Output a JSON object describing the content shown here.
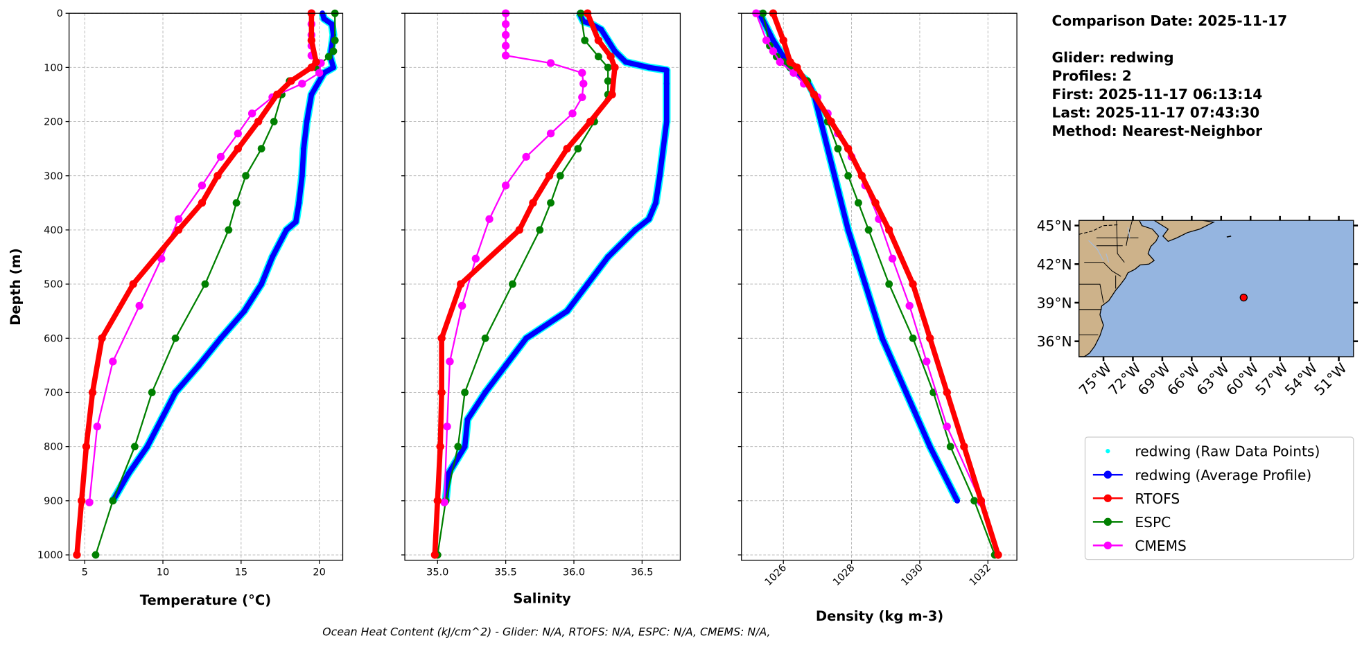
{
  "info": {
    "comparison_date": "Comparison Date: 2025-11-17",
    "glider": "Glider: redwing",
    "profiles": "Profiles: 2",
    "first": "First: 2025-11-17 06:13:14",
    "last": "Last: 2025-11-17 07:43:30",
    "method": "Method: Nearest-Neighbor"
  },
  "footer": "Ocean Heat Content (kJ/cm^2) - Glider: N/A,  RTOFS: N/A,  ESPC: N/A,  CMEMS: N/A,",
  "colors": {
    "raw": "#00ffff",
    "glider": "#0000ff",
    "rtofs": "#ff0000",
    "espc": "#008000",
    "cmems": "#ff00ff",
    "land": "#cdb28a",
    "ocean": "#95b5e0"
  },
  "legend": [
    {
      "label": "redwing (Raw Data Points)",
      "key": "raw"
    },
    {
      "label": "redwing (Average Profile)",
      "key": "glider"
    },
    {
      "label": "RTOFS",
      "key": "rtofs"
    },
    {
      "label": "ESPC",
      "key": "espc"
    },
    {
      "label": "CMEMS",
      "key": "cmems"
    }
  ],
  "map": {
    "lat_ticks": [
      "45°N",
      "42°N",
      "39°N",
      "36°N"
    ],
    "lat_values": [
      45,
      42,
      39,
      36
    ],
    "lon_ticks": [
      "75°W",
      "72°W",
      "69°W",
      "66°W",
      "63°W",
      "60°W",
      "57°W",
      "54°W",
      "51°W"
    ],
    "lon_values": [
      -75,
      -72,
      -69,
      -66,
      -63,
      -60,
      -57,
      -54,
      -51
    ],
    "lon_range": [
      -77.5,
      -49.5
    ],
    "lat_range": [
      34.8,
      45.4
    ],
    "glider_position": {
      "lon": -60.7,
      "lat": 39.4
    }
  },
  "chart_data": [
    {
      "type": "line",
      "id": "temperature",
      "xlabel": "Temperature (°C)",
      "ylabel": "Depth (m)",
      "xlim": [
        4.0,
        21.5
      ],
      "ylim": [
        1010,
        0
      ],
      "xticks": [
        5,
        10,
        15,
        20
      ],
      "xtick_labels": [
        "5",
        "10",
        "15",
        "20"
      ],
      "yticks": [
        0,
        100,
        200,
        300,
        400,
        500,
        600,
        700,
        800,
        900,
        1000
      ],
      "ytick_labels": [
        "0",
        "100",
        "200",
        "300",
        "400",
        "500",
        "600",
        "700",
        "800",
        "900",
        "1000"
      ],
      "grid": true,
      "series": [
        {
          "name": "glider",
          "depth": [
            0,
            10,
            20,
            40,
            80,
            100,
            110,
            150,
            200,
            250,
            300,
            350,
            385,
            400,
            450,
            500,
            550,
            600,
            650,
            700,
            750,
            800,
            850,
            900
          ],
          "values": [
            20.2,
            20.3,
            20.8,
            20.9,
            20.7,
            20.9,
            20.3,
            19.5,
            19.2,
            19.0,
            18.9,
            18.7,
            18.5,
            17.9,
            17.0,
            16.3,
            15.2,
            13.7,
            12.3,
            10.8,
            9.9,
            9.0,
            7.8,
            6.8
          ]
        },
        {
          "name": "rtofs",
          "depth": [
            0,
            50,
            90,
            100,
            125,
            150,
            200,
            250,
            300,
            350,
            400,
            500,
            600,
            700,
            800,
            900,
            1000
          ],
          "values": [
            19.5,
            19.5,
            19.8,
            19.5,
            18.2,
            17.3,
            16.1,
            14.8,
            13.5,
            12.5,
            11.0,
            8.1,
            6.1,
            5.5,
            5.1,
            4.8,
            4.5
          ]
        },
        {
          "name": "espc",
          "depth": [
            0,
            50,
            70,
            80,
            100,
            125,
            150,
            200,
            250,
            300,
            350,
            400,
            500,
            600,
            700,
            800,
            900,
            1000
          ],
          "values": [
            21.0,
            21.0,
            20.9,
            20.6,
            19.8,
            18.1,
            17.6,
            17.1,
            16.3,
            15.3,
            14.7,
            14.2,
            12.7,
            10.8,
            9.3,
            8.2,
            6.8,
            5.7
          ]
        },
        {
          "name": "cmems",
          "depth": [
            0,
            20,
            40,
            60,
            78,
            92,
            110,
            130,
            155,
            185,
            222,
            265,
            318,
            380,
            453,
            540,
            643,
            763,
            903
          ],
          "values": [
            19.5,
            19.5,
            19.5,
            19.5,
            19.5,
            20.1,
            20.0,
            18.9,
            17.0,
            15.7,
            14.8,
            13.7,
            12.5,
            11.0,
            9.9,
            8.5,
            6.8,
            5.8,
            5.3
          ]
        }
      ]
    },
    {
      "type": "line",
      "id": "salinity",
      "xlabel": "Salinity",
      "xlim": [
        34.76,
        36.78
      ],
      "ylim": [
        1010,
        0
      ],
      "xticks": [
        35.0,
        35.5,
        36.0,
        36.5
      ],
      "xtick_labels": [
        "35.0",
        "35.5",
        "36.0",
        "36.5"
      ],
      "yticks": [
        0,
        100,
        200,
        300,
        400,
        500,
        600,
        700,
        800,
        900,
        1000
      ],
      "grid": true,
      "series": [
        {
          "name": "glider",
          "depth": [
            0,
            15,
            20,
            30,
            50,
            70,
            90,
            100,
            105,
            130,
            200,
            300,
            350,
            380,
            400,
            450,
            500,
            550,
            600,
            650,
            700,
            750,
            800,
            850,
            900
          ],
          "values": [
            36.04,
            36.07,
            36.13,
            36.2,
            36.25,
            36.3,
            36.38,
            36.55,
            36.68,
            36.68,
            36.68,
            36.63,
            36.6,
            36.55,
            36.45,
            36.25,
            36.1,
            35.95,
            35.65,
            35.5,
            35.35,
            35.22,
            35.2,
            35.08,
            35.06
          ]
        },
        {
          "name": "rtofs",
          "depth": [
            0,
            50,
            80,
            100,
            150,
            200,
            250,
            300,
            350,
            400,
            500,
            600,
            700,
            800,
            900,
            1000
          ],
          "values": [
            36.1,
            36.18,
            36.27,
            36.3,
            36.28,
            36.12,
            35.95,
            35.82,
            35.7,
            35.6,
            35.17,
            35.03,
            35.03,
            35.02,
            35.0,
            34.98
          ]
        },
        {
          "name": "espc",
          "depth": [
            0,
            50,
            80,
            100,
            125,
            150,
            200,
            250,
            300,
            350,
            400,
            500,
            600,
            700,
            800,
            900,
            1000
          ],
          "values": [
            36.05,
            36.08,
            36.18,
            36.25,
            36.25,
            36.25,
            36.15,
            36.03,
            35.9,
            35.83,
            35.75,
            35.55,
            35.35,
            35.2,
            35.15,
            35.06,
            35.0
          ]
        },
        {
          "name": "cmems",
          "depth": [
            0,
            20,
            40,
            60,
            78,
            92,
            110,
            130,
            155,
            185,
            222,
            265,
            318,
            380,
            453,
            540,
            643,
            763,
            903
          ],
          "values": [
            35.5,
            35.5,
            35.5,
            35.5,
            35.5,
            35.83,
            36.06,
            36.07,
            36.06,
            35.99,
            35.83,
            35.65,
            35.5,
            35.38,
            35.28,
            35.18,
            35.09,
            35.07,
            35.05
          ]
        }
      ]
    },
    {
      "type": "line",
      "id": "density",
      "xlabel": "Density (kg m-3)",
      "xlim": [
        1024.77,
        1032.85
      ],
      "ylim": [
        1010,
        0
      ],
      "xticks": [
        1026,
        1028,
        1030,
        1032
      ],
      "xtick_labels": [
        "1026",
        "1028",
        "1030",
        "1032"
      ],
      "yticks": [
        0,
        100,
        200,
        300,
        400,
        500,
        600,
        700,
        800,
        900,
        1000
      ],
      "grid": true,
      "series": [
        {
          "name": "glider",
          "depth": [
            0,
            50,
            80,
            100,
            125,
            150,
            200,
            300,
            400,
            500,
            600,
            700,
            800,
            900
          ],
          "values": [
            1025.3,
            1025.7,
            1026.0,
            1026.2,
            1026.7,
            1026.9,
            1027.1,
            1027.5,
            1027.9,
            1028.4,
            1028.9,
            1029.6,
            1030.3,
            1031.1
          ]
        },
        {
          "name": "rtofs",
          "depth": [
            0,
            50,
            90,
            100,
            150,
            200,
            250,
            300,
            350,
            400,
            500,
            600,
            700,
            800,
            900,
            1000
          ],
          "values": [
            1025.7,
            1026.0,
            1026.2,
            1026.4,
            1026.9,
            1027.4,
            1027.9,
            1028.3,
            1028.7,
            1029.1,
            1029.8,
            1030.3,
            1030.8,
            1031.3,
            1031.8,
            1032.3
          ]
        },
        {
          "name": "espc",
          "depth": [
            0,
            60,
            80,
            90,
            100,
            125,
            150,
            200,
            250,
            300,
            350,
            400,
            500,
            600,
            700,
            800,
            900,
            1000
          ],
          "values": [
            1025.4,
            1025.6,
            1025.8,
            1026.0,
            1026.2,
            1026.7,
            1026.9,
            1027.3,
            1027.6,
            1027.9,
            1028.2,
            1028.5,
            1029.1,
            1029.8,
            1030.4,
            1030.9,
            1031.6,
            1032.2
          ]
        },
        {
          "name": "cmems",
          "depth": [
            0,
            50,
            70,
            90,
            110,
            130,
            155,
            185,
            222,
            265,
            318,
            380,
            453,
            540,
            643,
            763,
            903
          ],
          "values": [
            1025.2,
            1025.5,
            1025.7,
            1025.9,
            1026.3,
            1026.6,
            1027.0,
            1027.3,
            1027.6,
            1028.0,
            1028.4,
            1028.8,
            1029.2,
            1029.7,
            1030.2,
            1030.8,
            1031.8
          ]
        }
      ]
    }
  ]
}
